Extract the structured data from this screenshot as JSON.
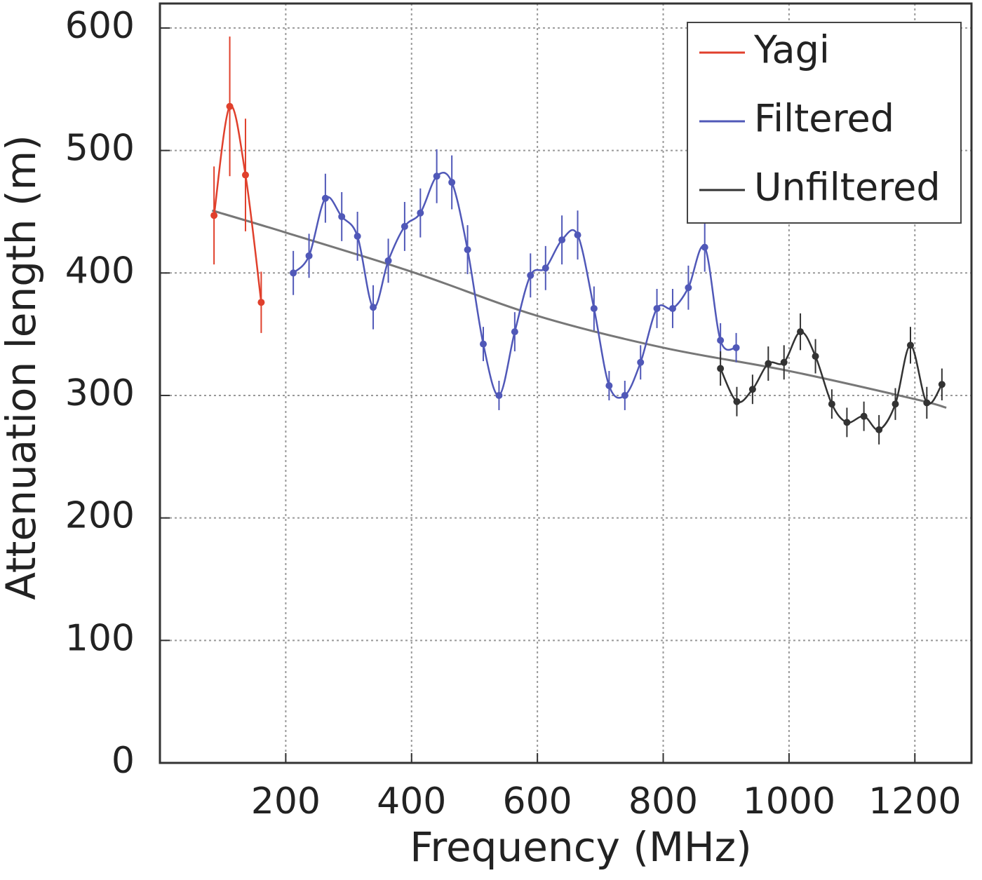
{
  "chart_data": {
    "type": "errorbar-line",
    "x_label": "Frequency (MHz)",
    "y_label": "Attenuation length (m)",
    "xlim": [
      0,
      1290
    ],
    "ylim": [
      0,
      620
    ],
    "xticks": [
      200,
      400,
      600,
      800,
      1000,
      1200
    ],
    "yticks": [
      0,
      100,
      200,
      300,
      400,
      500,
      600
    ],
    "grid": true,
    "legend": "upper right",
    "series": [
      {
        "name": "Yagi",
        "color": "#e0402c",
        "x": [
          86,
          111,
          136,
          161
        ],
        "values": [
          447,
          536,
          480,
          376
        ],
        "errors": [
          40,
          57,
          46,
          25
        ]
      },
      {
        "name": "Filtered",
        "color": "#5058b8",
        "x": [
          212,
          237,
          263,
          289,
          314,
          339,
          363,
          389,
          414,
          440,
          464,
          489,
          514,
          539,
          564,
          589,
          613,
          639,
          664,
          690,
          714,
          739,
          764,
          790,
          815,
          840,
          866,
          891,
          916
        ],
        "values": [
          400,
          414,
          461,
          446,
          430,
          372,
          410,
          438,
          449,
          479,
          474,
          419,
          342,
          300,
          352,
          398,
          404,
          427,
          431,
          371,
          308,
          300,
          327,
          371,
          371,
          388,
          421,
          345,
          339
        ],
        "errors": [
          18,
          18,
          20,
          20,
          20,
          18,
          18,
          20,
          20,
          22,
          22,
          20,
          14,
          12,
          16,
          18,
          18,
          20,
          20,
          18,
          12,
          12,
          14,
          16,
          16,
          18,
          20,
          14,
          12
        ]
      },
      {
        "name": "Unfiltered",
        "color": "#333333",
        "x": [
          891,
          917,
          942,
          967,
          992,
          1018,
          1042,
          1068,
          1092,
          1119,
          1143,
          1169,
          1193,
          1219,
          1243
        ],
        "values": [
          322,
          295,
          305,
          326,
          327,
          352,
          332,
          293,
          278,
          283,
          272,
          293,
          341,
          294,
          309
        ],
        "errors": [
          14,
          12,
          12,
          14,
          14,
          15,
          14,
          12,
          12,
          12,
          12,
          13,
          15,
          13,
          13
        ]
      }
    ],
    "fit": {
      "color": "#777777",
      "x": [
        83,
        200,
        400,
        600,
        800,
        1000,
        1200,
        1250
      ],
      "values": [
        451,
        433,
        401,
        365,
        339,
        320,
        297,
        290
      ]
    }
  }
}
